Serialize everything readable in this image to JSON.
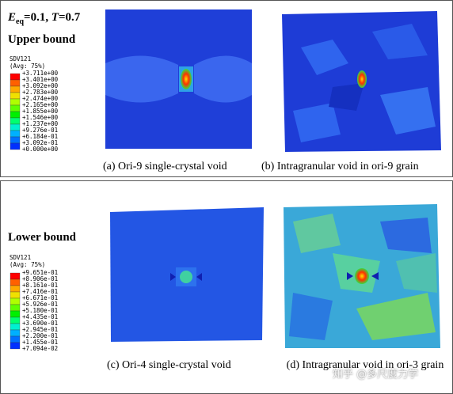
{
  "top": {
    "title": {
      "e": "E",
      "sub": "eq",
      "mid": "=0.1, ",
      "t": "T",
      "end": "=0.7"
    },
    "bound": "Upper bound",
    "legend": {
      "name": "SDV121",
      "avg": "(Avg: 75%)",
      "labels": [
        "+3.711e+00",
        "+3.401e+00",
        "+3.092e+00",
        "+2.783e+00",
        "+2.474e+00",
        "+2.165e+00",
        "+1.855e+00",
        "+1.546e+00",
        "+1.237e+00",
        "+9.276e-01",
        "+6.184e-01",
        "+3.092e-01",
        "+0.000e+00"
      ]
    },
    "captions": [
      "(a) Ori-9 single-crystal void",
      "(b) Intragranular void in ori-9 grain"
    ]
  },
  "bottom": {
    "bound": "Lower bound",
    "legend": {
      "name": "SDV121",
      "avg": "(Avg: 75%)",
      "labels": [
        "+9.651e-01",
        "+8.906e-01",
        "+8.161e-01",
        "+7.416e-01",
        "+6.671e-01",
        "+5.926e-01",
        "+5.180e-01",
        "+4.435e-01",
        "+3.690e-01",
        "+2.945e-01",
        "+2.200e-01",
        "+1.455e-01",
        "+7.094e-02"
      ]
    },
    "captions": [
      "(c) Ori-4 single-crystal void",
      "(d) Intragranular void in ori-3 grain"
    ]
  },
  "watermark": "知乎 @多尺度力学"
}
